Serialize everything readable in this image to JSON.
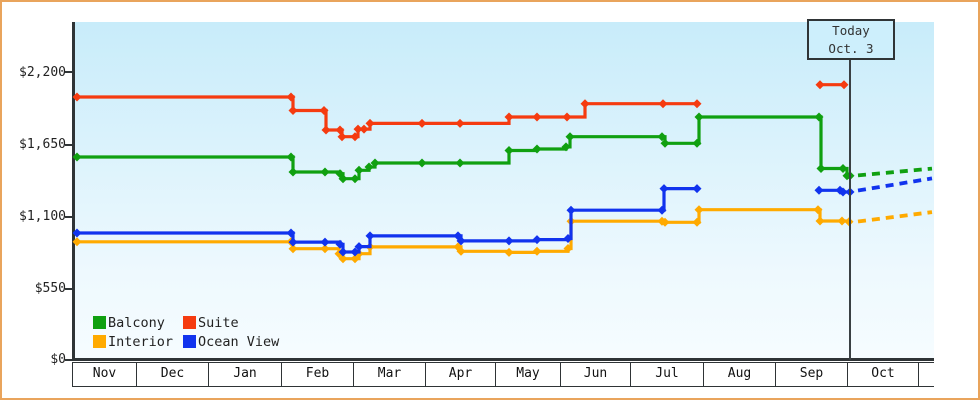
{
  "chart_data": {
    "type": "line",
    "subtype": "step_price_history",
    "title": "",
    "y_axis": {
      "min": 0,
      "max": 2200,
      "ticks": [
        {
          "label": "$2,200",
          "value": 2200
        },
        {
          "label": "$1,650",
          "value": 1650
        },
        {
          "label": "$1,100",
          "value": 1100
        },
        {
          "label": "$550",
          "value": 550
        },
        {
          "label": "$0",
          "value": 0
        }
      ]
    },
    "x_axis": {
      "months": [
        "Nov",
        "Dec",
        "Jan",
        "Feb",
        "Mar",
        "Apr",
        "May",
        "Jun",
        "Jul",
        "Aug",
        "Sep",
        "Oct"
      ]
    },
    "today_marker": {
      "title": "Today",
      "date": "Oct. 3"
    },
    "legend": [
      {
        "label": "Balcony",
        "color": "#10a010"
      },
      {
        "label": "Suite",
        "color": "#f53b10"
      },
      {
        "label": "Interior",
        "color": "#ffaa00"
      },
      {
        "label": "Ocean View",
        "color": "#1133ee"
      }
    ],
    "series": [
      {
        "name": "Suite",
        "color": "#f53b10",
        "runs": [
          [
            [
              75,
              2009
            ],
            [
              289,
              2009
            ],
            [
              291,
              1906
            ],
            [
              322,
              1906
            ],
            [
              324,
              1757
            ],
            [
              338,
              1757
            ],
            [
              340,
              1706
            ],
            [
              353,
              1706
            ],
            [
              356,
              1764
            ],
            [
              362,
              1764
            ],
            [
              368,
              1807
            ],
            [
              420,
              1807
            ],
            [
              458,
              1807
            ],
            [
              507,
              1856
            ],
            [
              535,
              1856
            ],
            [
              565,
              1856
            ],
            [
              583,
              1958
            ],
            [
              661,
              1958
            ],
            [
              695,
              1958
            ]
          ],
          [
            [
              818,
              2103
            ],
            [
              842,
              2103
            ]
          ]
        ]
      },
      {
        "name": "Balcony",
        "color": "#10a010",
        "runs": [
          [
            [
              75,
              1551
            ],
            [
              289,
              1551
            ],
            [
              291,
              1436
            ],
            [
              323,
              1436
            ],
            [
              338,
              1423
            ],
            [
              341,
              1385
            ],
            [
              353,
              1385
            ],
            [
              357,
              1449
            ],
            [
              367,
              1474
            ],
            [
              373,
              1505
            ],
            [
              420,
              1505
            ],
            [
              458,
              1505
            ],
            [
              507,
              1600
            ],
            [
              535,
              1612
            ],
            [
              564,
              1628
            ],
            [
              568,
              1706
            ],
            [
              660,
              1706
            ],
            [
              663,
              1655
            ],
            [
              695,
              1655
            ],
            [
              697,
              1856
            ],
            [
              817,
              1856
            ],
            [
              819,
              1463
            ],
            [
              841,
              1463
            ],
            [
              845,
              1408
            ],
            [
              848,
              1408
            ]
          ]
        ],
        "forecast": [
          [
            856,
            1410
          ],
          [
            930,
            1462
          ]
        ]
      },
      {
        "name": "Interior",
        "color": "#ffaa00",
        "runs": [
          [
            [
              75,
              903
            ],
            [
              289,
              903
            ],
            [
              291,
              850
            ],
            [
              323,
              850
            ],
            [
              337,
              812
            ],
            [
              341,
              774
            ],
            [
              353,
              774
            ],
            [
              357,
              812
            ],
            [
              368,
              864
            ],
            [
              456,
              864
            ],
            [
              459,
              830
            ],
            [
              507,
              822
            ],
            [
              535,
              830
            ],
            [
              566,
              852
            ],
            [
              569,
              1060
            ],
            [
              660,
              1060
            ],
            [
              663,
              1052
            ],
            [
              695,
              1052
            ],
            [
              697,
              1148
            ],
            [
              816,
              1148
            ],
            [
              818,
              1062
            ],
            [
              840,
              1062
            ],
            [
              847,
              1056
            ]
          ]
        ],
        "forecast": [
          [
            856,
            1058
          ],
          [
            930,
            1130
          ]
        ]
      },
      {
        "name": "Ocean View",
        "color": "#1133ee",
        "runs": [
          [
            [
              75,
              970
            ],
            [
              289,
              970
            ],
            [
              291,
              901
            ],
            [
              323,
              901
            ],
            [
              338,
              884
            ],
            [
              341,
              825
            ],
            [
              353,
              825
            ],
            [
              357,
              866
            ],
            [
              368,
              948
            ],
            [
              456,
              948
            ],
            [
              459,
              910
            ],
            [
              507,
              910
            ],
            [
              535,
              920
            ],
            [
              566,
              928
            ],
            [
              569,
              1144
            ],
            [
              660,
              1144
            ],
            [
              662,
              1309
            ],
            [
              695,
              1309
            ]
          ],
          [
            [
              817,
              1296
            ],
            [
              838,
              1296
            ],
            [
              841,
              1283
            ],
            [
              848,
              1283
            ]
          ]
        ],
        "forecast": [
          [
            856,
            1295
          ],
          [
            930,
            1387
          ]
        ]
      }
    ]
  }
}
